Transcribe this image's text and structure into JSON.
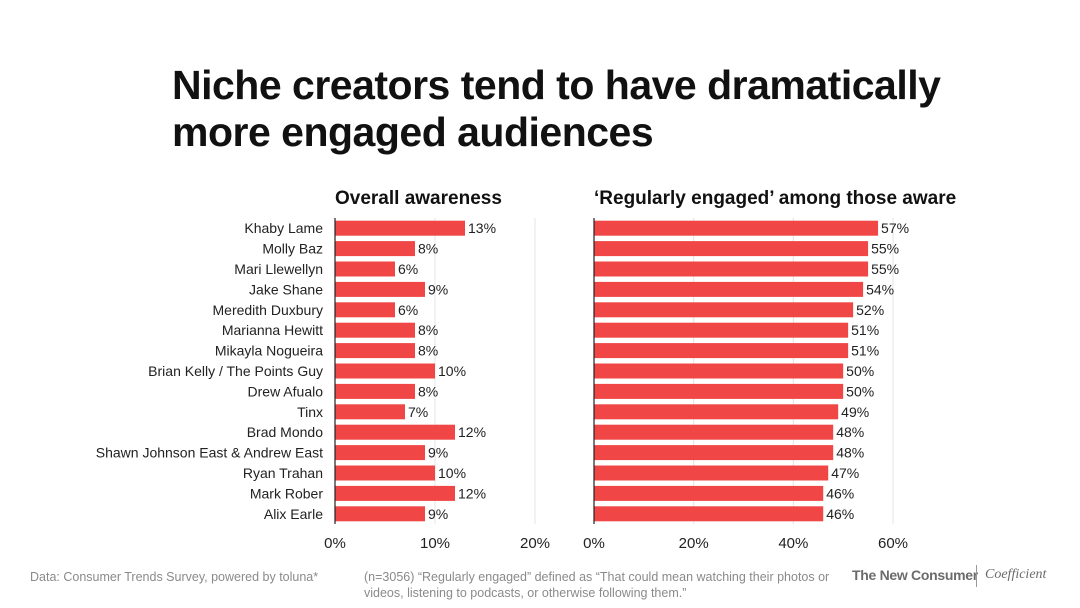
{
  "title": "Niche creators tend to have dramatically more engaged audiences",
  "chart_data": [
    {
      "type": "bar",
      "orientation": "horizontal",
      "title": "Overall awareness",
      "categories": [
        "Khaby Lame",
        "Molly Baz",
        "Mari Llewellyn",
        "Jake Shane",
        "Meredith Duxbury",
        "Marianna Hewitt",
        "Mikayla Nogueira",
        "Brian Kelly / The Points Guy",
        "Drew Afualo",
        "Tinx",
        "Brad Mondo",
        "Shawn Johnson East & Andrew East",
        "Ryan Trahan",
        "Mark Rober",
        "Alix Earle"
      ],
      "values": [
        13,
        8,
        6,
        9,
        6,
        8,
        8,
        10,
        8,
        7,
        12,
        9,
        10,
        12,
        9
      ],
      "value_suffix": "%",
      "xlim": [
        0,
        20
      ],
      "ticks": [
        0,
        10,
        20
      ],
      "tick_labels": [
        "0%",
        "10%",
        "20%"
      ],
      "bar_color": "#f04646"
    },
    {
      "type": "bar",
      "orientation": "horizontal",
      "title": "‘Regularly engaged’ among those aware",
      "categories": [
        "Khaby Lame",
        "Molly Baz",
        "Mari Llewellyn",
        "Jake Shane",
        "Meredith Duxbury",
        "Marianna Hewitt",
        "Mikayla Nogueira",
        "Brian Kelly / The Points Guy",
        "Drew Afualo",
        "Tinx",
        "Brad Mondo",
        "Shawn Johnson East & Andrew East",
        "Ryan Trahan",
        "Mark Rober",
        "Alix Earle"
      ],
      "values": [
        57,
        55,
        55,
        54,
        52,
        51,
        51,
        50,
        50,
        49,
        48,
        48,
        47,
        46,
        46
      ],
      "value_suffix": "%",
      "xlim": [
        0,
        60
      ],
      "ticks": [
        0,
        20,
        40,
        60
      ],
      "tick_labels": [
        "0%",
        "20%",
        "40%",
        "60%"
      ],
      "bar_color": "#f04646"
    }
  ],
  "footer": {
    "source": "Data: Consumer Trends Survey, powered by toluna*",
    "note": "(n=3056) “Regularly engaged” defined as “That could mean watching their photos or videos, listening to podcasts, or otherwise following them.”",
    "brand_primary": "The New Consumer",
    "brand_secondary": "Coefficient"
  }
}
